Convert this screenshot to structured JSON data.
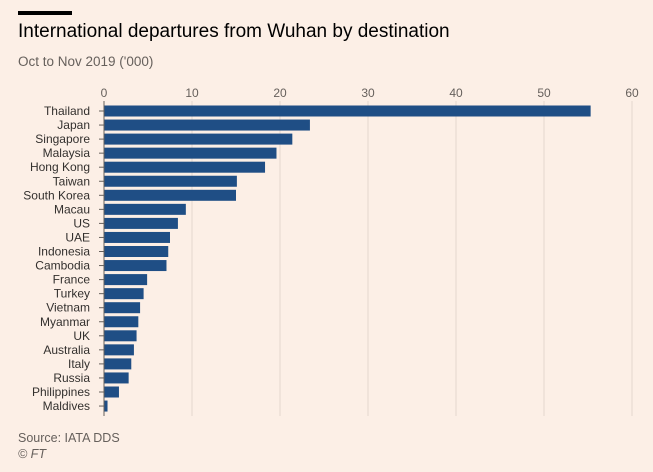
{
  "header": {
    "title": "International departures from Wuhan by destination",
    "subtitle": "Oct to Nov 2019 ('000)"
  },
  "footer": {
    "source": "Source: IATA DDS",
    "credit": "© FT"
  },
  "colors": {
    "background": "#fcefe6",
    "bar": "#1f4e85",
    "grid": "#e3d7cf",
    "axis": "#66605c"
  },
  "chart_data": {
    "type": "bar",
    "orientation": "horizontal",
    "title": "International departures from Wuhan by destination",
    "subtitle": "Oct to Nov 2019 ('000)",
    "xlabel": "",
    "ylabel": "",
    "xlim": [
      0,
      60
    ],
    "x_ticks": [
      0,
      10,
      20,
      30,
      40,
      50,
      60
    ],
    "x_axis_position": "top",
    "grid": true,
    "legend": "none",
    "categories": [
      "Thailand",
      "Japan",
      "Singapore",
      "Malaysia",
      "Hong Kong",
      "Taiwan",
      "South Korea",
      "Macau",
      "US",
      "UAE",
      "Indonesia",
      "Cambodia",
      "France",
      "Turkey",
      "Vietnam",
      "Myanmar",
      "UK",
      "Australia",
      "Italy",
      "Russia",
      "Philippines",
      "Maldives"
    ],
    "values": [
      55.3,
      23.4,
      21.4,
      19.6,
      18.3,
      15.1,
      15.0,
      9.3,
      8.4,
      7.5,
      7.3,
      7.1,
      4.9,
      4.5,
      4.1,
      3.9,
      3.7,
      3.4,
      3.1,
      2.8,
      1.7,
      0.4
    ]
  }
}
